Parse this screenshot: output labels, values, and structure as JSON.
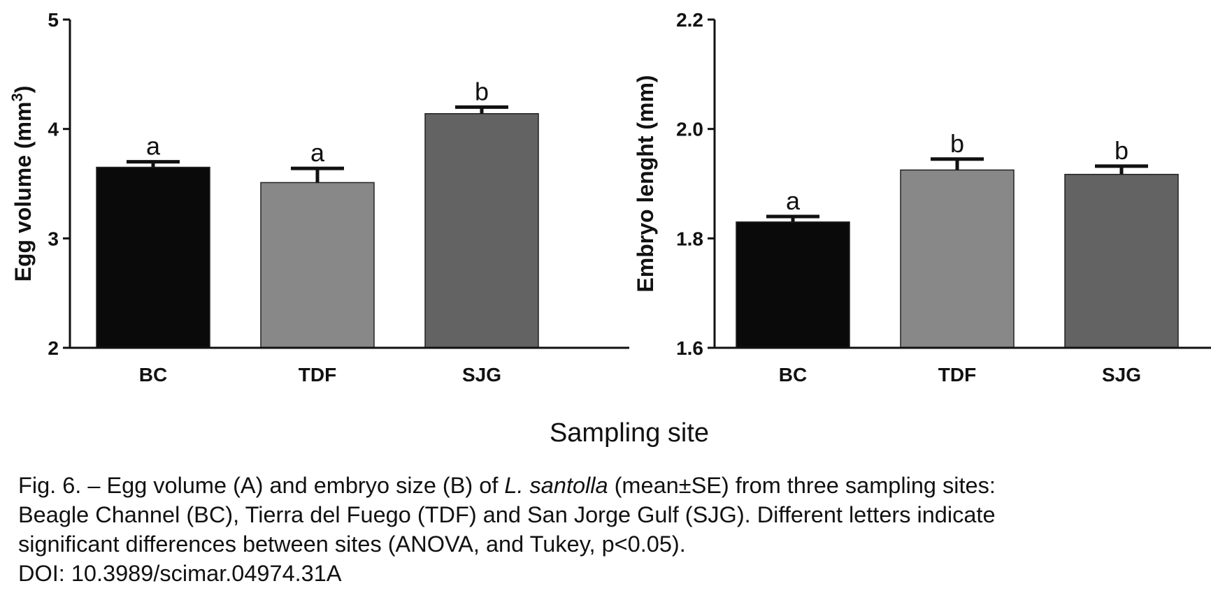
{
  "chart_data": [
    {
      "type": "bar",
      "categories": [
        "BC",
        "TDF",
        "SJG"
      ],
      "values": [
        3.65,
        3.51,
        4.14
      ],
      "errors": [
        0.05,
        0.13,
        0.06
      ],
      "letters": [
        "a",
        "a",
        "b"
      ],
      "colors": [
        "#0a0a0a",
        "#888888",
        "#636363"
      ],
      "ylabel": "Egg volume (mm",
      "ylabel_sup": "3",
      "ylabel_close": ")",
      "ylim": [
        2,
        5
      ],
      "yticks": [
        2,
        3,
        4,
        5
      ],
      "ytick_labels": [
        "2",
        "3",
        "4",
        "5"
      ]
    },
    {
      "type": "bar",
      "categories": [
        "BC",
        "TDF",
        "SJG"
      ],
      "values": [
        1.83,
        1.925,
        1.917
      ],
      "errors": [
        0.01,
        0.02,
        0.015
      ],
      "letters": [
        "a",
        "b",
        "b"
      ],
      "colors": [
        "#0a0a0a",
        "#888888",
        "#636363"
      ],
      "ylabel": "Embryo lenght (mm)",
      "ylim": [
        1.6,
        2.2
      ],
      "yticks": [
        1.6,
        1.8,
        2.0,
        2.2
      ],
      "ytick_labels": [
        "1.6",
        "1.8",
        "2.0",
        "2.2"
      ]
    }
  ],
  "xlabel": "Sampling site",
  "caption": {
    "line1_pre": "Fig. 6. – Egg volume (A) and embryo size (B) of ",
    "line1_italic": "L. santolla",
    "line1_post": " (mean±SE) from three sampling sites:",
    "line2": "Beagle Channel (BC), Tierra del Fuego (TDF) and San Jorge Gulf (SJG). Different letters indicate",
    "line3": "significant differences between sites (ANOVA, and Tukey, p<0.05).",
    "line4": "DOI: 10.3989/scimar.04974.31A"
  }
}
